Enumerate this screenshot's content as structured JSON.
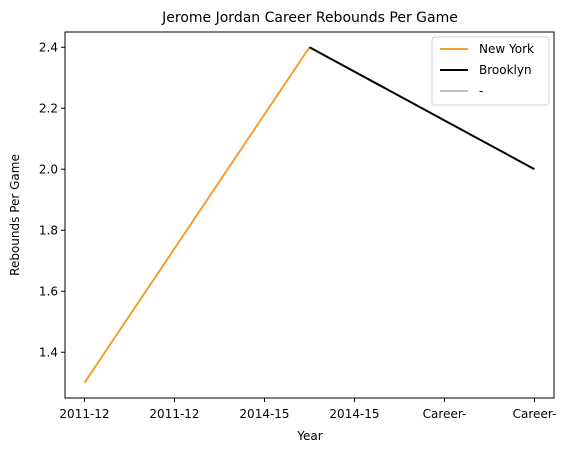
{
  "chart_data": {
    "type": "line",
    "title": "Jerome Jordan Career Rebounds Per Game",
    "xlabel": "Year",
    "ylabel": "Rebounds Per Game",
    "categories": [
      "2011-12",
      "2011-12",
      "2014-15",
      "2014-15",
      "Career-",
      "Career-"
    ],
    "ylim": [
      1.25,
      2.45
    ],
    "yticks": [
      1.4,
      1.6,
      1.8,
      2.0,
      2.2,
      2.4
    ],
    "ytick_labels": [
      "1.4",
      "1.6",
      "1.8",
      "2.0",
      "2.2",
      "2.4"
    ],
    "grid": false,
    "legend_placement": "top-right",
    "series": [
      {
        "name": "New York",
        "color": "#f0a030",
        "points": [
          [
            0,
            1.3
          ],
          [
            2.5,
            2.4
          ]
        ]
      },
      {
        "name": "Brooklyn",
        "color": "#000000",
        "points": [
          [
            2.5,
            2.4
          ],
          [
            5,
            2.0
          ]
        ]
      },
      {
        "name": "-",
        "color": "#c0c0c0",
        "points": []
      }
    ]
  }
}
